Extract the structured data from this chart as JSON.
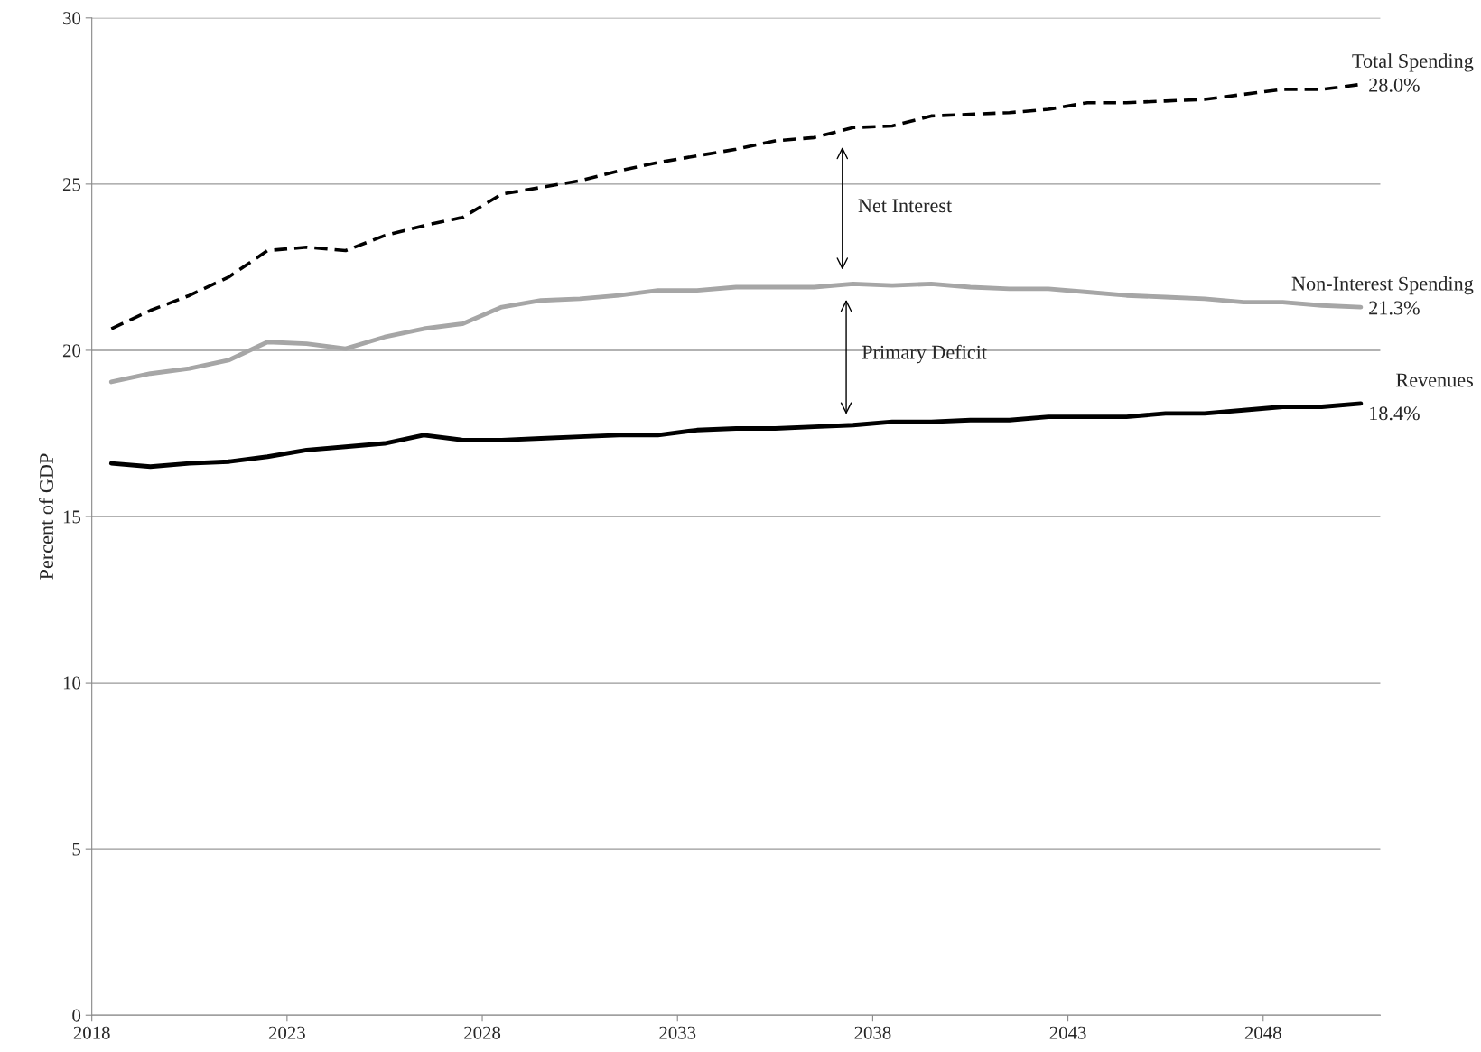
{
  "chart_data": {
    "type": "line",
    "ylabel": "Percent of GDP",
    "x": [
      2018.5,
      2019.5,
      2020.5,
      2021.5,
      2022.5,
      2023.5,
      2024.5,
      2025.5,
      2026.5,
      2027.5,
      2028.5,
      2029.5,
      2030.5,
      2031.5,
      2032.5,
      2033.5,
      2034.5,
      2035.5,
      2036.5,
      2037.5,
      2038.5,
      2039.5,
      2040.5,
      2041.5,
      2042.5,
      2043.5,
      2044.5,
      2045.5,
      2046.5,
      2047.5,
      2048.5,
      2049.5,
      2050.5
    ],
    "xlim": [
      2018,
      2051
    ],
    "xticks": [
      2018,
      2023,
      2028,
      2033,
      2038,
      2043,
      2048
    ],
    "ylim": [
      0,
      30
    ],
    "yticks": [
      0,
      5,
      10,
      15,
      20,
      25,
      30
    ],
    "grid": "y",
    "legend": false,
    "series": [
      {
        "name": "Total Spending",
        "color": "#000000",
        "line_style": "dashed",
        "values": [
          20.65,
          21.2,
          21.65,
          22.2,
          23.0,
          23.1,
          23.0,
          23.45,
          23.75,
          24.0,
          24.7,
          24.9,
          25.1,
          25.4,
          25.65,
          25.85,
          26.05,
          26.3,
          26.4,
          26.7,
          26.75,
          27.05,
          27.1,
          27.15,
          27.25,
          27.45,
          27.45,
          27.5,
          27.55,
          27.7,
          27.85,
          27.85,
          28.0
        ],
        "value_labels": [
          null,
          null,
          null,
          null,
          null,
          null,
          null,
          null,
          null,
          null,
          null,
          null,
          null,
          null,
          null,
          null,
          null,
          null,
          null,
          null,
          null,
          null,
          null,
          null,
          null,
          null,
          null,
          null,
          null,
          null,
          null,
          null,
          "28.0%"
        ]
      },
      {
        "name": "Non-Interest Spending",
        "color": "#a6a6a6",
        "line_style": "solid",
        "values": [
          19.05,
          19.3,
          19.45,
          19.7,
          20.25,
          20.2,
          20.05,
          20.4,
          20.65,
          20.8,
          21.3,
          21.5,
          21.55,
          21.65,
          21.8,
          21.8,
          21.9,
          21.9,
          21.9,
          22.0,
          21.95,
          22.0,
          21.9,
          21.85,
          21.85,
          21.75,
          21.65,
          21.6,
          21.55,
          21.45,
          21.45,
          21.35,
          21.3
        ],
        "value_labels": [
          null,
          null,
          null,
          null,
          null,
          null,
          null,
          null,
          null,
          null,
          null,
          null,
          null,
          null,
          null,
          null,
          null,
          null,
          null,
          null,
          null,
          null,
          null,
          null,
          null,
          null,
          null,
          null,
          null,
          null,
          null,
          null,
          "21.3%"
        ]
      },
      {
        "name": "Revenues",
        "color": "#000000",
        "line_style": "solid",
        "values": [
          16.6,
          16.5,
          16.6,
          16.65,
          16.8,
          17.0,
          17.1,
          17.2,
          17.45,
          17.3,
          17.3,
          17.35,
          17.4,
          17.45,
          17.45,
          17.6,
          17.65,
          17.65,
          17.7,
          17.75,
          17.85,
          17.85,
          17.9,
          17.9,
          18.0,
          18.0,
          18.0,
          18.1,
          18.1,
          18.2,
          18.3,
          18.3,
          18.4
        ],
        "value_labels": [
          null,
          null,
          null,
          null,
          null,
          null,
          null,
          null,
          null,
          null,
          null,
          null,
          null,
          null,
          null,
          null,
          null,
          null,
          null,
          null,
          null,
          null,
          null,
          null,
          null,
          null,
          null,
          null,
          null,
          null,
          null,
          null,
          "18.4%"
        ]
      }
    ],
    "annotations": [
      "Net Interest",
      "Primary Deficit"
    ]
  }
}
